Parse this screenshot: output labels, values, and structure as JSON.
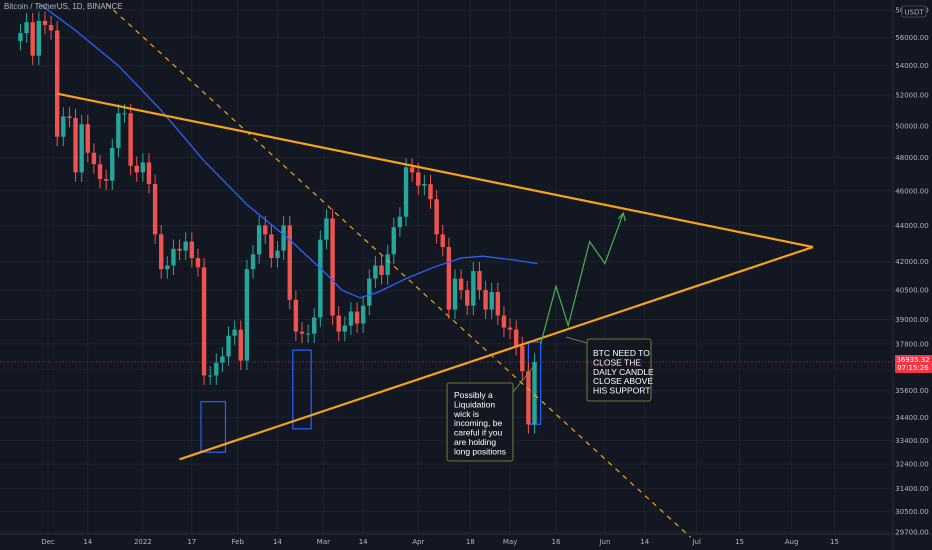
{
  "header": {
    "title": "Bitcoin / TetherUS, 1D, BINANCE",
    "currency_button": "USDT"
  },
  "price_tag": {
    "price": "36935.32",
    "countdown": "07:15:26",
    "color": "#f23645"
  },
  "colors": {
    "background": "#131722",
    "up": "#26a69a",
    "down": "#ef5350",
    "ma": "#2962ff",
    "trendline": "#f7a21b",
    "projection": "#4caf50",
    "box": "#2962ff",
    "note_border": "#8a9a3b"
  },
  "annotations": [
    {
      "text": [
        "Possibly a",
        "Liquidation",
        "wick is",
        "incoming, be",
        "careful if you",
        "are holding",
        "long positions"
      ]
    },
    {
      "text": [
        "BTC NEED TO",
        "CLOSE THE",
        "DAILY CANDLE",
        "CLOSE ABOVE",
        "HIS SUPPORT"
      ]
    }
  ],
  "chart_data": {
    "type": "candlestick",
    "y_axis": {
      "scale": "log",
      "ticks": [
        58000,
        56000,
        54000,
        52000,
        50000,
        48000,
        46000,
        44000,
        42000,
        40500,
        39000,
        37800,
        36600,
        35600,
        34400,
        33400,
        32400,
        31400,
        30500,
        29700
      ],
      "tick_labels": [
        "58000.00",
        "56000.00",
        "54000.00",
        "52000.00",
        "50000.00",
        "48000.00",
        "46000.00",
        "44000.00",
        "42000.00",
        "40500.00",
        "39000.00",
        "37800.00",
        "36600.00",
        "35600.00",
        "34400.00",
        "33400.00",
        "32400.00",
        "31400.00",
        "30500.00",
        "29700.00"
      ],
      "ylim": [
        29500,
        58500
      ]
    },
    "x_axis": {
      "labels": [
        "Dec",
        "14",
        "2022",
        "17",
        "Feb",
        "14",
        "Mar",
        "14",
        "Apr",
        "18",
        "May",
        "16",
        "Jun",
        "14",
        "Jul",
        "15",
        "Aug",
        "15"
      ],
      "label_dates": [
        "2021-12-01",
        "2021-12-14",
        "2022-01-01",
        "2022-01-17",
        "2022-02-01",
        "2022-02-14",
        "2022-03-01",
        "2022-03-14",
        "2022-04-01",
        "2022-04-18",
        "2022-05-01",
        "2022-05-16",
        "2022-06-01",
        "2022-06-14",
        "2022-07-01",
        "2022-07-15",
        "2022-08-01",
        "2022-08-15"
      ]
    },
    "series": [
      {
        "name": "BTCUSDT daily",
        "points": [
          {
            "date": "2021-11-22",
            "close": 56300
          },
          {
            "date": "2021-11-24",
            "close": 57100
          },
          {
            "date": "2021-11-26",
            "close": 54700
          },
          {
            "date": "2021-11-28",
            "close": 57200
          },
          {
            "date": "2021-11-30",
            "close": 56900
          },
          {
            "date": "2021-12-02",
            "close": 56500
          },
          {
            "date": "2021-12-04",
            "close": 49300
          },
          {
            "date": "2021-12-06",
            "close": 50600
          },
          {
            "date": "2021-12-08",
            "close": 50500
          },
          {
            "date": "2021-12-10",
            "close": 47100
          },
          {
            "date": "2021-12-12",
            "close": 50100
          },
          {
            "date": "2021-12-14",
            "close": 48300
          },
          {
            "date": "2021-12-16",
            "close": 47600
          },
          {
            "date": "2021-12-18",
            "close": 46700
          },
          {
            "date": "2021-12-20",
            "close": 46600
          },
          {
            "date": "2021-12-22",
            "close": 48600
          },
          {
            "date": "2021-12-24",
            "close": 50800
          },
          {
            "date": "2021-12-26",
            "close": 50800
          },
          {
            "date": "2021-12-28",
            "close": 47500
          },
          {
            "date": "2021-12-30",
            "close": 47100
          },
          {
            "date": "2022-01-01",
            "close": 47700
          },
          {
            "date": "2022-01-03",
            "close": 46400
          },
          {
            "date": "2022-01-05",
            "close": 43500
          },
          {
            "date": "2022-01-07",
            "close": 41600
          },
          {
            "date": "2022-01-09",
            "close": 41800
          },
          {
            "date": "2022-01-11",
            "close": 42700
          },
          {
            "date": "2022-01-13",
            "close": 42600
          },
          {
            "date": "2022-01-15",
            "close": 43100
          },
          {
            "date": "2022-01-17",
            "close": 42200
          },
          {
            "date": "2022-01-19",
            "close": 41700
          },
          {
            "date": "2022-01-21",
            "close": 36300
          },
          {
            "date": "2022-01-23",
            "close": 36300
          },
          {
            "date": "2022-01-25",
            "close": 36900
          },
          {
            "date": "2022-01-27",
            "close": 37200
          },
          {
            "date": "2022-01-29",
            "close": 38200
          },
          {
            "date": "2022-01-31",
            "close": 38500
          },
          {
            "date": "2022-02-02",
            "close": 37000
          },
          {
            "date": "2022-02-04",
            "close": 41600
          },
          {
            "date": "2022-02-06",
            "close": 42400
          },
          {
            "date": "2022-02-08",
            "close": 44000
          },
          {
            "date": "2022-02-10",
            "close": 43500
          },
          {
            "date": "2022-02-12",
            "close": 42200
          },
          {
            "date": "2022-02-14",
            "close": 42600
          },
          {
            "date": "2022-02-16",
            "close": 44000
          },
          {
            "date": "2022-02-18",
            "close": 40000
          },
          {
            "date": "2022-02-20",
            "close": 38400
          },
          {
            "date": "2022-02-22",
            "close": 38300
          },
          {
            "date": "2022-02-24",
            "close": 38300
          },
          {
            "date": "2022-02-26",
            "close": 39100
          },
          {
            "date": "2022-02-28",
            "close": 43200
          },
          {
            "date": "2022-03-02",
            "close": 44400
          },
          {
            "date": "2022-03-04",
            "close": 39200
          },
          {
            "date": "2022-03-06",
            "close": 38400
          },
          {
            "date": "2022-03-08",
            "close": 38700
          },
          {
            "date": "2022-03-10",
            "close": 39400
          },
          {
            "date": "2022-03-12",
            "close": 38800
          },
          {
            "date": "2022-03-14",
            "close": 39700
          },
          {
            "date": "2022-03-16",
            "close": 41100
          },
          {
            "date": "2022-03-18",
            "close": 41800
          },
          {
            "date": "2022-03-20",
            "close": 41300
          },
          {
            "date": "2022-03-22",
            "close": 42400
          },
          {
            "date": "2022-03-24",
            "close": 43900
          },
          {
            "date": "2022-03-26",
            "close": 44500
          },
          {
            "date": "2022-03-28",
            "close": 47400
          },
          {
            "date": "2022-03-30",
            "close": 47100
          },
          {
            "date": "2022-04-01",
            "close": 46300
          },
          {
            "date": "2022-04-03",
            "close": 46400
          },
          {
            "date": "2022-04-05",
            "close": 45500
          },
          {
            "date": "2022-04-07",
            "close": 43500
          },
          {
            "date": "2022-04-09",
            "close": 42800
          },
          {
            "date": "2022-04-11",
            "close": 39500
          },
          {
            "date": "2022-04-13",
            "close": 41100
          },
          {
            "date": "2022-04-15",
            "close": 40500
          },
          {
            "date": "2022-04-17",
            "close": 39700
          },
          {
            "date": "2022-04-19",
            "close": 41500
          },
          {
            "date": "2022-04-21",
            "close": 40500
          },
          {
            "date": "2022-04-23",
            "close": 39500
          },
          {
            "date": "2022-04-25",
            "close": 40400
          },
          {
            "date": "2022-04-27",
            "close": 39200
          },
          {
            "date": "2022-04-29",
            "close": 38600
          },
          {
            "date": "2022-05-01",
            "close": 38500
          },
          {
            "date": "2022-05-03",
            "close": 37700
          },
          {
            "date": "2022-05-05",
            "close": 36500
          },
          {
            "date": "2022-05-07",
            "close": 34100
          },
          {
            "date": "2022-05-09",
            "close": 36935
          }
        ]
      },
      {
        "name": "Moving average",
        "points": [
          {
            "date": "2021-11-28",
            "value": 58500
          },
          {
            "date": "2021-12-10",
            "value": 56500
          },
          {
            "date": "2021-12-24",
            "value": 54000
          },
          {
            "date": "2022-01-07",
            "value": 51000
          },
          {
            "date": "2022-01-21",
            "value": 47800
          },
          {
            "date": "2022-02-04",
            "value": 45200
          },
          {
            "date": "2022-02-18",
            "value": 43200
          },
          {
            "date": "2022-03-01",
            "value": 41500
          },
          {
            "date": "2022-03-07",
            "value": 40500
          },
          {
            "date": "2022-03-13",
            "value": 40100
          },
          {
            "date": "2022-03-19",
            "value": 40400
          },
          {
            "date": "2022-03-28",
            "value": 41100
          },
          {
            "date": "2022-04-06",
            "value": 41700
          },
          {
            "date": "2022-04-15",
            "value": 42200
          },
          {
            "date": "2022-04-22",
            "value": 42300
          },
          {
            "date": "2022-05-02",
            "value": 42100
          },
          {
            "date": "2022-05-10",
            "value": 41900
          }
        ]
      },
      {
        "name": "Projection",
        "points": [
          {
            "date": "2022-05-11",
            "value": 37800
          },
          {
            "date": "2022-05-16",
            "value": 40700
          },
          {
            "date": "2022-05-20",
            "value": 38700
          },
          {
            "date": "2022-05-27",
            "value": 43100
          },
          {
            "date": "2022-06-01",
            "value": 41900
          },
          {
            "date": "2022-06-07",
            "value": 44700
          }
        ]
      }
    ],
    "trendlines": [
      {
        "name": "Descending resistance",
        "start": {
          "date": "2021-12-04",
          "value": 52100
        },
        "end": {
          "date": "2022-08-08",
          "value": 42800
        }
      },
      {
        "name": "Ascending support",
        "start": {
          "date": "2022-01-13",
          "value": 32600
        },
        "end": {
          "date": "2022-08-08",
          "value": 42800
        }
      },
      {
        "name": "Dashed trendline",
        "start": {
          "date": "2021-12-20",
          "value": 58500
        },
        "end": {
          "date": "2022-06-29",
          "value": 29500
        }
      }
    ],
    "highlight_boxes": [
      {
        "from_date": "2022-01-20",
        "to_date": "2022-01-28",
        "high": 35100,
        "low": 32900
      },
      {
        "from_date": "2022-02-19",
        "to_date": "2022-02-25",
        "high": 37500,
        "low": 33900
      },
      {
        "from_date": "2022-05-07",
        "to_date": "2022-05-11",
        "high": 37900,
        "low": 34100
      }
    ]
  }
}
